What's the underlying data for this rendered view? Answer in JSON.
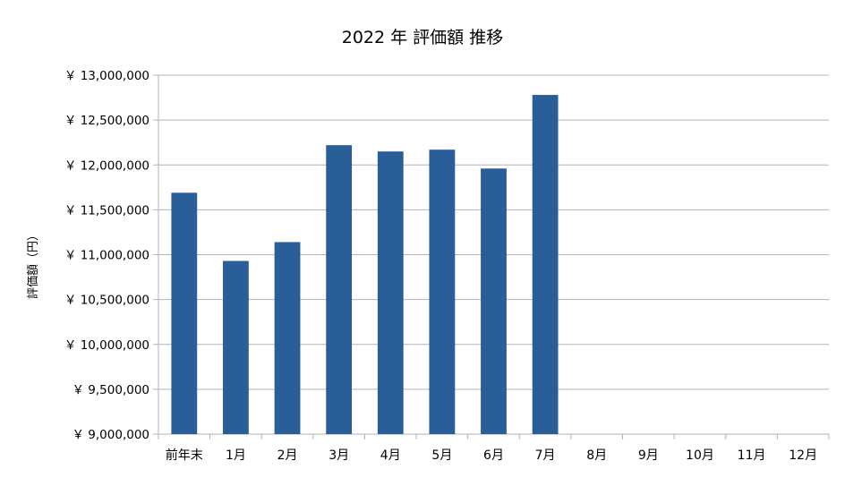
{
  "chart_data": {
    "type": "bar",
    "title": "2022 年 評価額 推移",
    "xlabel": "",
    "ylabel": "評価額（円）",
    "categories": [
      "前年末",
      "1月",
      "2月",
      "3月",
      "4月",
      "5月",
      "6月",
      "7月",
      "8月",
      "9月",
      "10月",
      "11月",
      "12月"
    ],
    "values": [
      11690000,
      10930000,
      11140000,
      12220000,
      12150000,
      12170000,
      11960000,
      12780000,
      null,
      null,
      null,
      null,
      null
    ],
    "ylim": [
      9000000,
      13000000
    ],
    "yticks": [
      9000000,
      9500000,
      10000000,
      10500000,
      11000000,
      11500000,
      12000000,
      12500000,
      13000000
    ],
    "ytick_labels": [
      "￥ 9,000,000",
      "￥ 9,500,000",
      "￥ 10,000,000",
      "￥ 10,500,000",
      "￥ 11,000,000",
      "￥ 11,500,000",
      "￥ 12,000,000",
      "￥ 12,500,000",
      "￥ 13,000,000"
    ],
    "grid": true,
    "legend": "none",
    "bar_color": "#2a5e99",
    "grid_color": "#b3b3b3",
    "axis_color": "#b3b3b3"
  }
}
